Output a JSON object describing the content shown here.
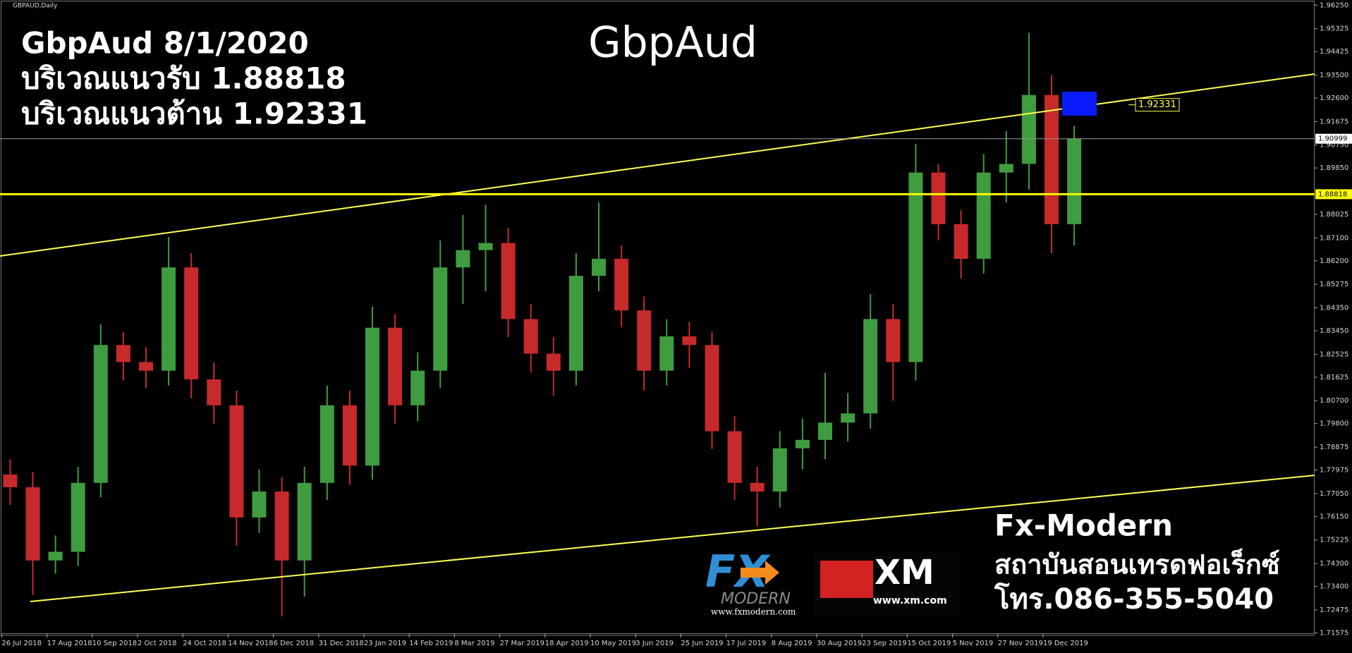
{
  "chart_data": {
    "type": "candlestick",
    "symbol": "GBPAUD,Daily",
    "title": "GbpAud",
    "annotations": [
      "GbpAud 8/1/2020",
      "บริเวณแนวรับ 1.88818",
      "บริเวณแนวต้าน 1.92331"
    ],
    "footer": [
      "Fx-Modern",
      "สถาบันสอนเทรดฟอเร็กซ์",
      "โทร.086-355-5040"
    ],
    "logos": {
      "fx": "FX",
      "fx_name": "MODERN",
      "fx_url": "www.fxmodern.com",
      "xm": "XM",
      "xm_url": "www.xm.com"
    },
    "categories": [
      "26 Jul 2018",
      null,
      "17 Aug 2018",
      null,
      "10 Sep 2018",
      null,
      "2 Oct 2018",
      null,
      "24 Oct 2018",
      null,
      "14 Nov 2018",
      null,
      "6 Dec 2018",
      null,
      "31 Dec 2018",
      null,
      "23 Jan 2019",
      null,
      "14 Feb 2019",
      null,
      "8 Mar 2019",
      null,
      "27 Mar 2019",
      null,
      "18 Apr 2019",
      null,
      "10 May 2019",
      null,
      "3 Jun 2019",
      null,
      "25 Jun 2019",
      null,
      "17 Jul 2019",
      null,
      "8 Aug 2019",
      null,
      "30 Aug 2019",
      null,
      "23 Sep 2019",
      null,
      "15 Oct 2019",
      null,
      "5 Nov 2019",
      null,
      "27 Nov 2019",
      null,
      "19 Dec 2019",
      null
    ],
    "open": [
      1.778,
      1.773,
      1.7442,
      1.7476,
      1.7747,
      1.8289,
      1.8222,
      1.8188,
      1.8594,
      1.8154,
      1.8052,
      1.7611,
      1.7713,
      1.7442,
      1.7747,
      1.8052,
      1.7815,
      1.8357,
      1.8052,
      1.8188,
      1.8594,
      1.8662,
      1.869,
      1.8391,
      1.8255,
      1.8188,
      1.8561,
      1.8628,
      1.8425,
      1.8188,
      1.8323,
      1.8289,
      1.795,
      1.7747,
      1.7713,
      1.7883,
      1.7916,
      1.7984,
      1.802,
      1.8391,
      1.8222,
      1.8967,
      1.8764,
      1.8628,
      1.8967,
      1.9001,
      1.9272,
      1.8764
    ],
    "high": [
      1.784,
      1.779,
      1.754,
      1.781,
      1.837,
      1.834,
      1.828,
      1.8713,
      1.865,
      1.822,
      1.811,
      1.78,
      1.777,
      1.781,
      1.813,
      1.811,
      1.844,
      1.841,
      1.826,
      1.87,
      1.88,
      1.884,
      1.875,
      1.845,
      1.832,
      1.865,
      1.8849,
      1.868,
      1.848,
      1.839,
      1.838,
      1.834,
      1.801,
      1.781,
      1.795,
      1.8,
      1.818,
      1.81,
      1.849,
      1.845,
      1.908,
      1.9,
      1.882,
      1.904,
      1.913,
      1.9516,
      1.935,
      1.915
    ],
    "low": [
      1.766,
      1.7307,
      1.739,
      1.742,
      1.769,
      1.815,
      1.812,
      1.813,
      1.808,
      1.798,
      1.75,
      1.755,
      1.7222,
      1.73,
      1.768,
      1.774,
      1.776,
      1.798,
      1.799,
      1.812,
      1.845,
      1.85,
      1.832,
      1.818,
      1.809,
      1.813,
      1.85,
      1.836,
      1.811,
      1.813,
      1.82,
      1.788,
      1.768,
      1.7577,
      1.765,
      1.78,
      1.784,
      1.791,
      1.796,
      1.807,
      1.815,
      1.87,
      1.855,
      1.857,
      1.885,
      1.89,
      1.865,
      1.868
    ],
    "close": [
      1.773,
      1.7442,
      1.7476,
      1.7747,
      1.8289,
      1.8222,
      1.8188,
      1.8594,
      1.8154,
      1.8052,
      1.7611,
      1.7713,
      1.7442,
      1.7747,
      1.8052,
      1.7815,
      1.8357,
      1.8052,
      1.8188,
      1.8594,
      1.8662,
      1.869,
      1.8391,
      1.8255,
      1.8188,
      1.8561,
      1.8628,
      1.8425,
      1.8188,
      1.8323,
      1.8289,
      1.795,
      1.7747,
      1.7713,
      1.7883,
      1.7916,
      1.7984,
      1.802,
      1.8391,
      1.8222,
      1.8967,
      1.8764,
      1.8628,
      1.8967,
      1.9001,
      1.9272,
      1.8764,
      1.91
    ],
    "ylim": [
      1.71575,
      1.9625
    ],
    "yticks": [
      {
        "value": 1.9625,
        "label": "1.96250"
      },
      {
        "value": 1.95325,
        "label": "1.95325"
      },
      {
        "value": 1.94425,
        "label": "1.94425"
      },
      {
        "value": 1.935,
        "label": "1.93500"
      },
      {
        "value": 1.926,
        "label": "1.92600"
      },
      {
        "value": 1.91675,
        "label": "1.91675"
      },
      {
        "value": 1.9075,
        "label": "1.90750"
      },
      {
        "value": 1.8985,
        "label": "1.89850"
      },
      {
        "value": 1.88025,
        "label": "1.88025"
      },
      {
        "value": 1.871,
        "label": "1.87100"
      },
      {
        "value": 1.862,
        "label": "1.86200"
      },
      {
        "value": 1.85275,
        "label": "1.85275"
      },
      {
        "value": 1.8435,
        "label": "1.84350"
      },
      {
        "value": 1.8345,
        "label": "1.83450"
      },
      {
        "value": 1.82525,
        "label": "1.82525"
      },
      {
        "value": 1.81625,
        "label": "1.81625"
      },
      {
        "value": 1.807,
        "label": "1.80700"
      },
      {
        "value": 1.798,
        "label": "1.79800"
      },
      {
        "value": 1.78875,
        "label": "1.78875"
      },
      {
        "value": 1.77975,
        "label": "1.77975"
      },
      {
        "value": 1.7705,
        "label": "1.77050"
      },
      {
        "value": 1.7615,
        "label": "1.76150"
      },
      {
        "value": 1.75225,
        "label": "1.75225"
      },
      {
        "value": 1.743,
        "label": "1.74300"
      },
      {
        "value": 1.734,
        "label": "1.73400"
      },
      {
        "value": 1.72475,
        "label": "1.72475"
      },
      {
        "value": 1.71575,
        "label": "1.71575"
      }
    ],
    "support": 1.88818,
    "resistance": 1.92331,
    "last_price": 1.90999,
    "colors": {
      "up": "#3f9c3f",
      "down": "#c62a2a",
      "support": "#ffff00",
      "trend": "#ffff55",
      "zone": "#0a1cff",
      "last": "#9a9a9a"
    }
  }
}
